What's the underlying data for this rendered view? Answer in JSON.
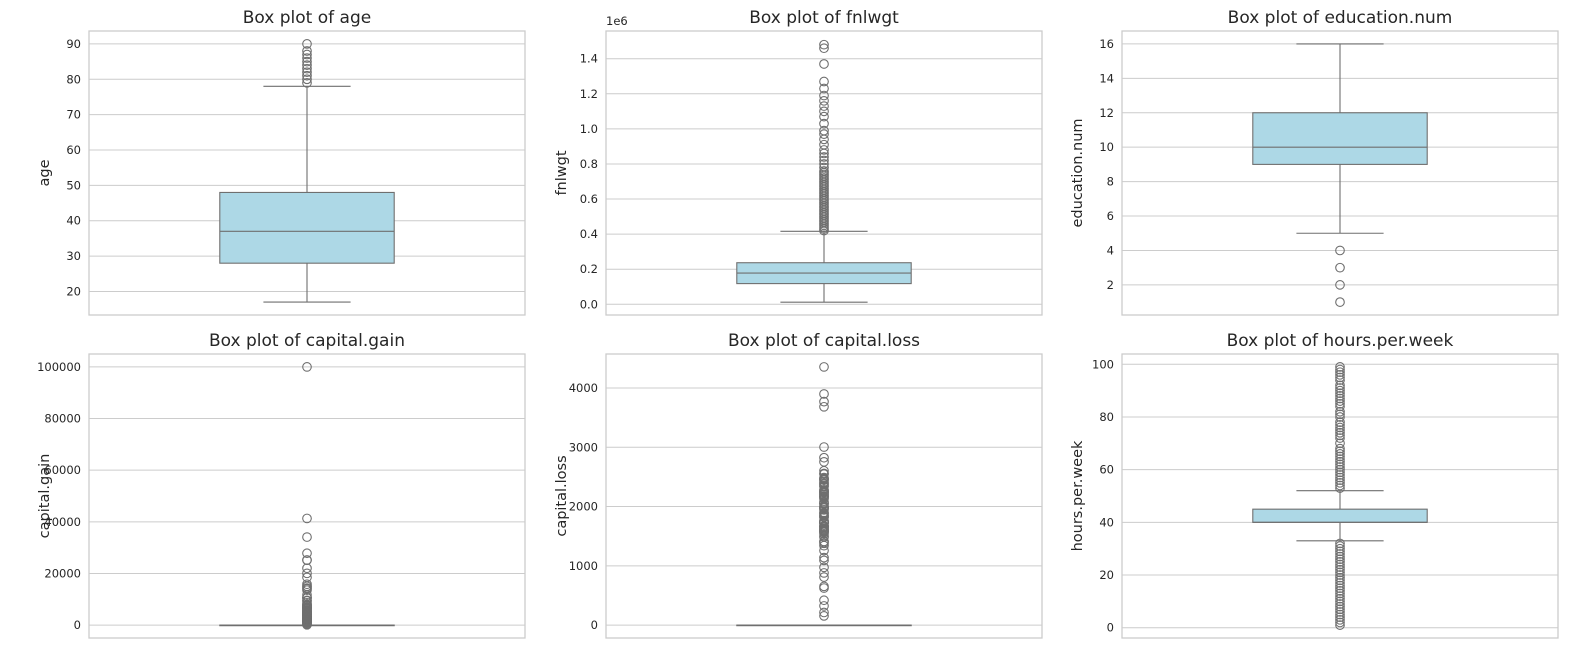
{
  "chart_data": [
    {
      "type": "box",
      "title": "Box plot of age",
      "ylabel": "age",
      "ylim": [
        13.35,
        93.65
      ],
      "yticks": [
        20,
        30,
        40,
        50,
        60,
        70,
        80,
        90
      ],
      "tick_labels": [
        "20",
        "30",
        "40",
        "50",
        "60",
        "70",
        "80",
        "90"
      ],
      "offset_label": "",
      "box": {
        "whisker_low": 17,
        "q1": 28,
        "median": 37,
        "q3": 48,
        "whisker_high": 78
      },
      "outliers": [
        79,
        80,
        81,
        82,
        83,
        84,
        85,
        86,
        87,
        88,
        90
      ]
    },
    {
      "type": "box",
      "title": "Box plot of fnlwgt",
      "ylabel": "fnlwgt",
      "ylim": [
        -0.061,
        1.558
      ],
      "yticks": [
        0.0,
        0.2,
        0.4,
        0.6,
        0.8,
        1.0,
        1.2,
        1.4
      ],
      "tick_labels": [
        "0.0",
        "0.2",
        "0.4",
        "0.6",
        "0.8",
        "1.0",
        "1.2",
        "1.4"
      ],
      "offset_label": "1e6",
      "box": {
        "whisker_low": 0.012,
        "q1": 0.118,
        "median": 0.178,
        "q3": 0.237,
        "whisker_high": 0.416
      },
      "outliers": [
        0.42,
        0.43,
        0.44,
        0.45,
        0.46,
        0.47,
        0.48,
        0.49,
        0.5,
        0.51,
        0.52,
        0.53,
        0.54,
        0.55,
        0.56,
        0.57,
        0.58,
        0.59,
        0.6,
        0.61,
        0.62,
        0.63,
        0.64,
        0.65,
        0.66,
        0.67,
        0.68,
        0.69,
        0.7,
        0.71,
        0.72,
        0.73,
        0.74,
        0.75,
        0.76,
        0.78,
        0.8,
        0.82,
        0.84,
        0.86,
        0.88,
        0.91,
        0.94,
        0.97,
        0.99,
        1.03,
        1.07,
        1.1,
        1.13,
        1.16,
        1.19,
        1.23,
        1.27,
        1.37,
        1.46,
        1.48
      ]
    },
    {
      "type": "box",
      "title": "Box plot of education.num",
      "ylabel": "education.num",
      "ylim": [
        0.25,
        16.75
      ],
      "yticks": [
        2,
        4,
        6,
        8,
        10,
        12,
        14,
        16
      ],
      "tick_labels": [
        "2",
        "4",
        "6",
        "8",
        "10",
        "12",
        "14",
        "16"
      ],
      "offset_label": "",
      "box": {
        "whisker_low": 5,
        "q1": 9,
        "median": 10,
        "q3": 12,
        "whisker_high": 16
      },
      "outliers": [
        1,
        2,
        3,
        4
      ]
    },
    {
      "type": "box",
      "title": "Box plot of capital.gain",
      "ylabel": "capital.gain",
      "ylim": [
        -5000,
        105000
      ],
      "yticks": [
        0,
        20000,
        40000,
        60000,
        80000,
        100000
      ],
      "tick_labels": [
        "0",
        "20000",
        "40000",
        "60000",
        "80000",
        "100000"
      ],
      "offset_label": "",
      "box": {
        "whisker_low": 0,
        "q1": 0,
        "median": 0,
        "q3": 0,
        "whisker_high": 0
      },
      "outliers": [
        114,
        401,
        594,
        914,
        991,
        1055,
        1151,
        1409,
        1471,
        1506,
        1639,
        1797,
        1831,
        1848,
        2009,
        2036,
        2050,
        2062,
        2105,
        2174,
        2176,
        2202,
        2228,
        2290,
        2329,
        2346,
        2354,
        2387,
        2407,
        2414,
        2463,
        2538,
        2580,
        2597,
        2635,
        2653,
        2829,
        2885,
        2907,
        2936,
        2961,
        2964,
        2977,
        2993,
        3103,
        3137,
        3273,
        3325,
        3411,
        3418,
        3432,
        3456,
        3464,
        3471,
        3674,
        3781,
        3818,
        3887,
        3908,
        3942,
        4064,
        4101,
        4386,
        4416,
        4508,
        4650,
        4687,
        4787,
        4865,
        4931,
        4934,
        5013,
        5060,
        5178,
        5455,
        5556,
        5721,
        6097,
        6360,
        6418,
        6497,
        6514,
        6723,
        6767,
        6849,
        7298,
        7430,
        7443,
        7688,
        7896,
        7978,
        8614,
        9386,
        9562,
        10520,
        10566,
        10605,
        11678,
        13550,
        14084,
        14344,
        15020,
        15024,
        15831,
        18481,
        20051,
        22040,
        25124,
        25236,
        27828,
        34095,
        41310,
        99999
      ]
    },
    {
      "type": "box",
      "title": "Box plot of capital.loss",
      "ylabel": "capital.loss",
      "ylim": [
        -218,
        4574
      ],
      "yticks": [
        0,
        1000,
        2000,
        3000,
        4000
      ],
      "tick_labels": [
        "0",
        "1000",
        "2000",
        "3000",
        "4000"
      ],
      "offset_label": "",
      "box": {
        "whisker_low": 0,
        "q1": 0,
        "median": 0,
        "q3": 0,
        "whisker_high": 0
      },
      "outliers": [
        155,
        213,
        323,
        419,
        625,
        653,
        810,
        880,
        974,
        1092,
        1138,
        1258,
        1340,
        1380,
        1408,
        1411,
        1485,
        1504,
        1539,
        1564,
        1573,
        1579,
        1590,
        1594,
        1602,
        1617,
        1628,
        1648,
        1651,
        1668,
        1669,
        1672,
        1719,
        1721,
        1726,
        1735,
        1740,
        1741,
        1755,
        1762,
        1816,
        1825,
        1844,
        1848,
        1876,
        1887,
        1902,
        1944,
        1974,
        1977,
        1980,
        2001,
        2002,
        2042,
        2051,
        2057,
        2080,
        2129,
        2149,
        2163,
        2174,
        2179,
        2201,
        2206,
        2231,
        2238,
        2246,
        2258,
        2267,
        2282,
        2339,
        2352,
        2377,
        2392,
        2415,
        2444,
        2457,
        2467,
        2472,
        2489,
        2547,
        2559,
        2603,
        2754,
        2824,
        3004,
        3683,
        3770,
        3900,
        4356
      ]
    },
    {
      "type": "box",
      "title": "Box plot of hours.per.week",
      "ylabel": "hours.per.week",
      "ylim": [
        -3.9,
        103.9
      ],
      "yticks": [
        0,
        20,
        40,
        60,
        80,
        100
      ],
      "tick_labels": [
        "0",
        "20",
        "40",
        "60",
        "80",
        "100"
      ],
      "offset_label": "",
      "box": {
        "whisker_low": 33,
        "q1": 40,
        "median": 40,
        "q3": 45,
        "whisker_high": 52
      },
      "outliers": [
        1,
        2,
        3,
        4,
        5,
        6,
        7,
        8,
        9,
        10,
        11,
        12,
        13,
        14,
        15,
        16,
        17,
        18,
        19,
        20,
        21,
        22,
        23,
        24,
        25,
        26,
        27,
        28,
        29,
        30,
        31,
        32,
        53,
        54,
        55,
        56,
        57,
        58,
        59,
        60,
        61,
        62,
        63,
        64,
        65,
        66,
        67,
        68,
        70,
        72,
        73,
        74,
        75,
        76,
        77,
        78,
        80,
        81,
        82,
        84,
        85,
        86,
        87,
        88,
        89,
        90,
        91,
        92,
        94,
        95,
        96,
        97,
        98,
        99
      ]
    }
  ]
}
